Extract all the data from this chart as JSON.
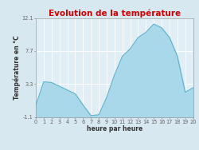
{
  "title": "Evolution de la température",
  "xlabel": "heure par heure",
  "ylabel": "Température en °C",
  "hours": [
    0,
    1,
    2,
    3,
    4,
    5,
    6,
    7,
    8,
    9,
    10,
    11,
    12,
    13,
    14,
    15,
    16,
    17,
    18,
    19,
    20
  ],
  "temperatures": [
    0.5,
    3.6,
    3.5,
    3.0,
    2.5,
    2.0,
    0.5,
    -0.9,
    -0.8,
    1.5,
    4.5,
    7.0,
    8.0,
    9.5,
    10.2,
    11.3,
    10.8,
    9.5,
    7.0,
    2.2,
    2.8
  ],
  "yticks": [
    -1.1,
    3.3,
    7.7,
    12.1
  ],
  "ylim": [
    -1.1,
    12.1
  ],
  "xlim": [
    0,
    20
  ],
  "fill_color": "#a8d8ea",
  "line_color": "#5aaec8",
  "title_color": "#cc0000",
  "bg_color": "#d8e8f0",
  "plot_bg_color": "#e2eef5",
  "grid_color": "#ffffff",
  "tick_label_color": "#666666",
  "axis_label_color": "#333333",
  "title_fontsize": 7.5,
  "label_fontsize": 5.5,
  "tick_fontsize": 4.8
}
